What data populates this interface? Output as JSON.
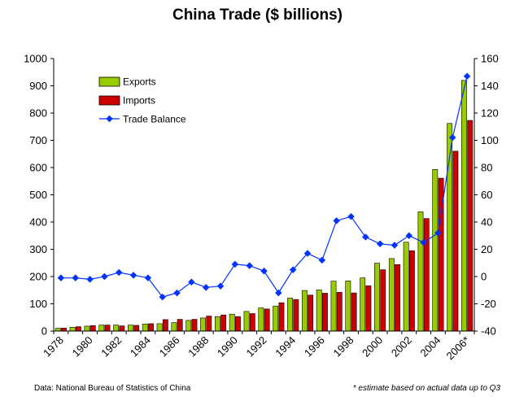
{
  "chart_data": {
    "type": "bar",
    "title": "China Trade ($ billions)",
    "categories": [
      "1978",
      "1979",
      "1980",
      "1981",
      "1982",
      "1983",
      "1984",
      "1985",
      "1986",
      "1987",
      "1988",
      "1989",
      "1990",
      "1991",
      "1992",
      "1993",
      "1994",
      "1995",
      "1996",
      "1997",
      "1998",
      "1999",
      "2000",
      "2001",
      "2002",
      "2003",
      "2004",
      "2005",
      "2006*"
    ],
    "x_tick_labels": [
      "1978",
      "1980",
      "1982",
      "1984",
      "1986",
      "1988",
      "1990",
      "1992",
      "1994",
      "1996",
      "1998",
      "2000",
      "2002",
      "2004",
      "2006*"
    ],
    "series": [
      {
        "name": "Exports",
        "type": "bar",
        "axis": "left",
        "color": "#99cc00",
        "values": [
          10,
          14,
          18,
          22,
          22,
          22,
          26,
          27,
          31,
          39,
          48,
          53,
          62,
          72,
          85,
          92,
          121,
          149,
          151,
          183,
          184,
          195,
          249,
          266,
          326,
          438,
          593,
          762,
          920
        ]
      },
      {
        "name": "Imports",
        "type": "bar",
        "axis": "left",
        "color": "#cc0000",
        "values": [
          11,
          16,
          20,
          22,
          19,
          21,
          27,
          42,
          43,
          43,
          55,
          59,
          53,
          64,
          81,
          104,
          116,
          132,
          139,
          142,
          140,
          166,
          225,
          244,
          295,
          413,
          561,
          660,
          773
        ]
      },
      {
        "name": "Trade Balance",
        "type": "line",
        "axis": "right",
        "color": "#0033ff",
        "values": [
          -1,
          -1,
          -2,
          0,
          3,
          1,
          -1,
          -15,
          -12,
          -4,
          -8,
          -7,
          9,
          8,
          4,
          -12,
          5,
          17,
          12,
          41,
          44,
          29,
          24,
          23,
          30,
          25,
          32,
          102,
          147
        ]
      }
    ],
    "ylim_left": [
      0,
      1000
    ],
    "yticks_left": [
      "0",
      "100",
      "200",
      "300",
      "400",
      "500",
      "600",
      "700",
      "800",
      "900",
      "1000"
    ],
    "ylim_right": [
      -40,
      160
    ],
    "yticks_right": [
      "-40",
      "-20",
      "0",
      "20",
      "40",
      "60",
      "80",
      "100",
      "120",
      "140",
      "160"
    ],
    "legend": "top-left",
    "grid": false
  },
  "source_note": "Data: National Bureau of Statistics of China",
  "footnote": "* estimate based on actual data up to Q3"
}
